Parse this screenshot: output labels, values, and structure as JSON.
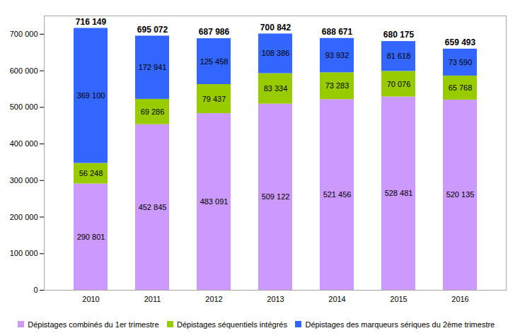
{
  "chart_data": {
    "type": "bar",
    "stacked": true,
    "data_labels": true,
    "grid": false,
    "legend": "bottom",
    "categories": [
      "2010",
      "2011",
      "2012",
      "2013",
      "2014",
      "2015",
      "2016"
    ],
    "totals": [
      716149,
      695072,
      687986,
      700842,
      688671,
      680175,
      659493
    ],
    "total_labels": [
      "716 149",
      "695 072",
      "687 986",
      "700 842",
      "688 671",
      "680 175",
      "659 493"
    ],
    "ylim": [
      0,
      750000
    ],
    "yticks": [
      0,
      {
        "value": 100000,
        "label": "100 000"
      },
      {
        "value": 200000,
        "label": "200 000"
      },
      {
        "value": 300000,
        "label": "300 000"
      },
      {
        "value": 400000,
        "label": "400 000"
      },
      {
        "value": 500000,
        "label": "500 000"
      },
      {
        "value": 600000,
        "label": "600 000"
      },
      {
        "value": 700000,
        "label": "700 000"
      }
    ],
    "series": [
      {
        "name": "Dépistages combinés du 1er trimestre",
        "color": "#cc99ff",
        "values": [
          290801,
          452845,
          483091,
          509122,
          521456,
          528481,
          520135
        ],
        "value_labels": [
          "290 801",
          "452 845",
          "483 091",
          "509 122",
          "521 456",
          "528 481",
          "520 135"
        ]
      },
      {
        "name": "Dépistages séquentiels intégrés",
        "color": "#99cc00",
        "values": [
          56248,
          69286,
          79437,
          83334,
          73283,
          70076,
          65768
        ],
        "value_labels": [
          "56 248",
          "69 286",
          "79 437",
          "83 334",
          "73 283",
          "70 076",
          "65 768"
        ]
      },
      {
        "name": "Dépistages des marqueurs sériques du 2ème trimestre",
        "color": "#3366ff",
        "values": [
          369100,
          172941,
          125458,
          108386,
          93932,
          81618,
          73590
        ],
        "value_labels": [
          "369 100",
          "172 941",
          "125 458",
          "108 386",
          "93 932",
          "81 618",
          "73 590"
        ]
      }
    ]
  }
}
